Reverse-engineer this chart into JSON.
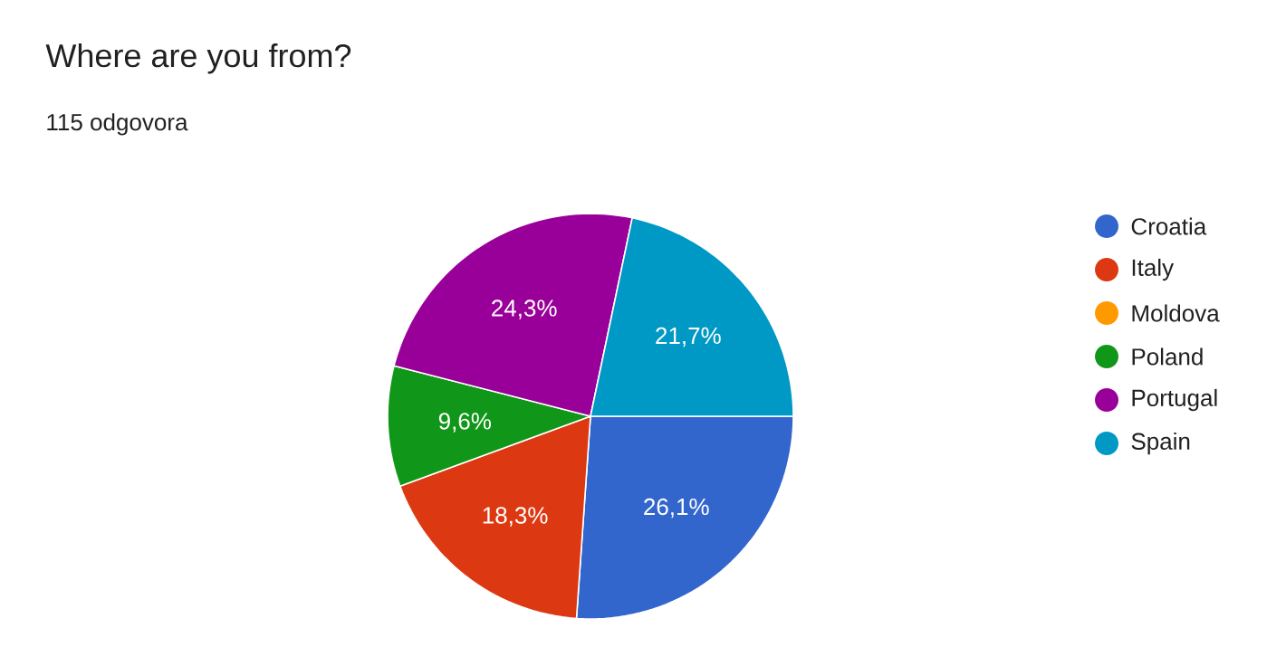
{
  "chart_data": {
    "type": "pie",
    "title": "Where are you from?",
    "subtitle": "115 odgovora",
    "categories": [
      "Croatia",
      "Italy",
      "Moldova",
      "Poland",
      "Portugal",
      "Spain"
    ],
    "values": [
      26.1,
      18.3,
      0,
      9.6,
      24.3,
      21.7
    ],
    "value_labels": [
      "26,1%",
      "18,3%",
      null,
      "9,6%",
      "24,3%",
      "21,7%"
    ],
    "colors": [
      "#3366cc",
      "#dc3912",
      "#ff9900",
      "#109618",
      "#990099",
      "#0099c6"
    ],
    "legend": "right"
  }
}
